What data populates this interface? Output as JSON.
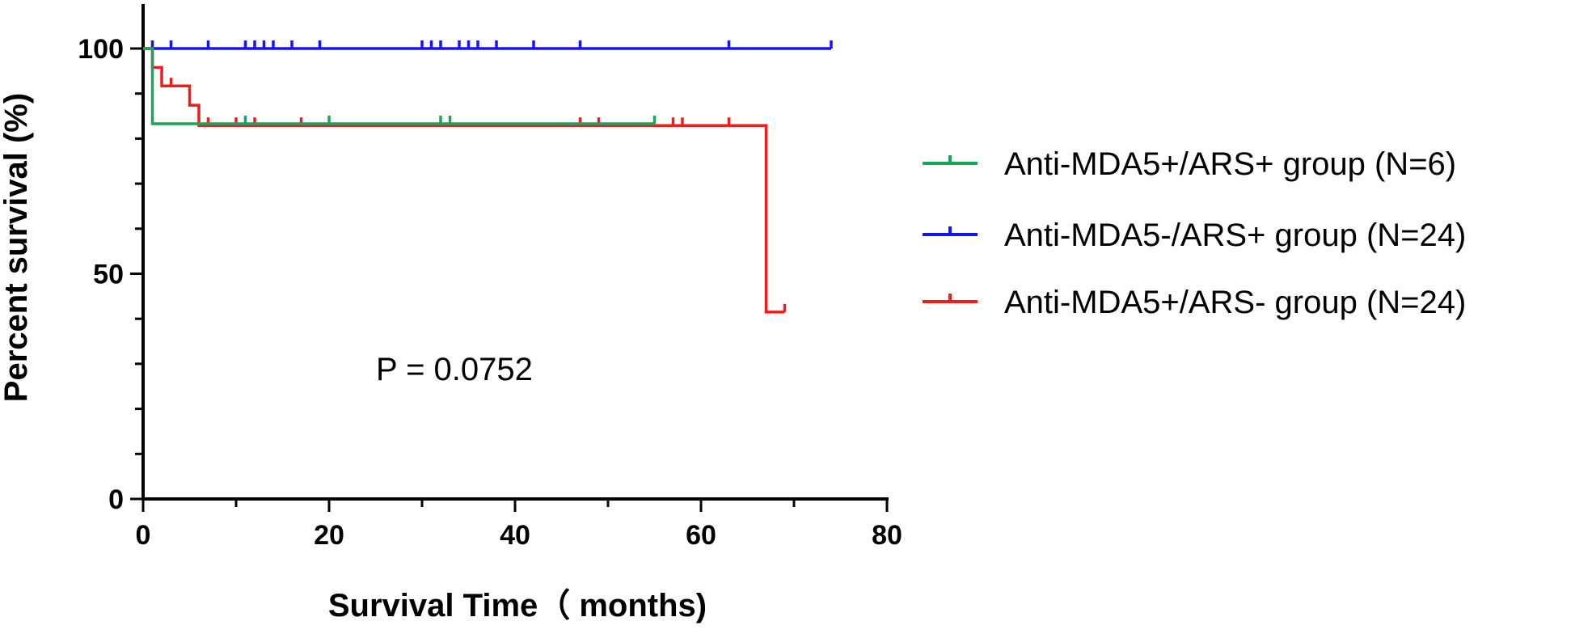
{
  "chart_data": {
    "type": "line",
    "title": "",
    "xlabel": "Survival Time（ months)",
    "ylabel": "Percent survival (%)",
    "xlim": [
      0,
      80
    ],
    "ylim": [
      0,
      100
    ],
    "x_ticks": [
      0,
      20,
      40,
      60,
      80
    ],
    "y_ticks": [
      0,
      50,
      100
    ],
    "x_tick_labels": [
      "0",
      "20",
      "40",
      "60",
      "80"
    ],
    "y_tick_labels": [
      "0",
      "50",
      "100"
    ],
    "grid": false,
    "legend_position": "right",
    "annotation": "P = 0.0752",
    "series": [
      {
        "name": "Anti-MDA5+/ARS+ group (N=6)",
        "color": "#1aa65a",
        "steps": [
          [
            0,
            100
          ],
          [
            1,
            83.3
          ],
          [
            55,
            83.3
          ]
        ],
        "censored": [
          [
            11,
            83.3
          ],
          [
            20,
            83.3
          ],
          [
            32,
            83.3
          ],
          [
            33,
            83.3
          ],
          [
            55,
            83.3
          ]
        ]
      },
      {
        "name": "Anti-MDA5-/ARS+ group (N=24)",
        "color": "#1515ee",
        "steps": [
          [
            0,
            100
          ],
          [
            74,
            100
          ]
        ],
        "censored": [
          [
            1,
            100
          ],
          [
            3,
            100
          ],
          [
            7,
            100
          ],
          [
            11,
            100
          ],
          [
            12,
            100
          ],
          [
            13,
            100
          ],
          [
            14,
            100
          ],
          [
            16,
            100
          ],
          [
            19,
            100
          ],
          [
            30,
            100
          ],
          [
            31,
            100
          ],
          [
            32,
            100
          ],
          [
            34,
            100
          ],
          [
            35,
            100
          ],
          [
            36,
            100
          ],
          [
            38,
            100
          ],
          [
            42,
            100
          ],
          [
            47,
            100
          ],
          [
            63,
            100
          ],
          [
            74,
            100
          ]
        ]
      },
      {
        "name": "Anti-MDA5+/ARS- group (N=24)",
        "color": "#ee1c1c",
        "steps": [
          [
            0,
            100
          ],
          [
            1,
            95.8
          ],
          [
            2,
            91.7
          ],
          [
            5,
            87.4
          ],
          [
            6,
            82.9
          ],
          [
            67,
            82.9
          ],
          [
            67,
            41.5
          ],
          [
            69,
            41.5
          ]
        ],
        "censored": [
          [
            3,
            91.7
          ],
          [
            7,
            82.9
          ],
          [
            10,
            82.9
          ],
          [
            12,
            82.9
          ],
          [
            17,
            82.9
          ],
          [
            47,
            82.9
          ],
          [
            49,
            82.9
          ],
          [
            57,
            82.9
          ],
          [
            58,
            82.9
          ],
          [
            63,
            82.9
          ],
          [
            69,
            41.5
          ]
        ]
      }
    ]
  }
}
